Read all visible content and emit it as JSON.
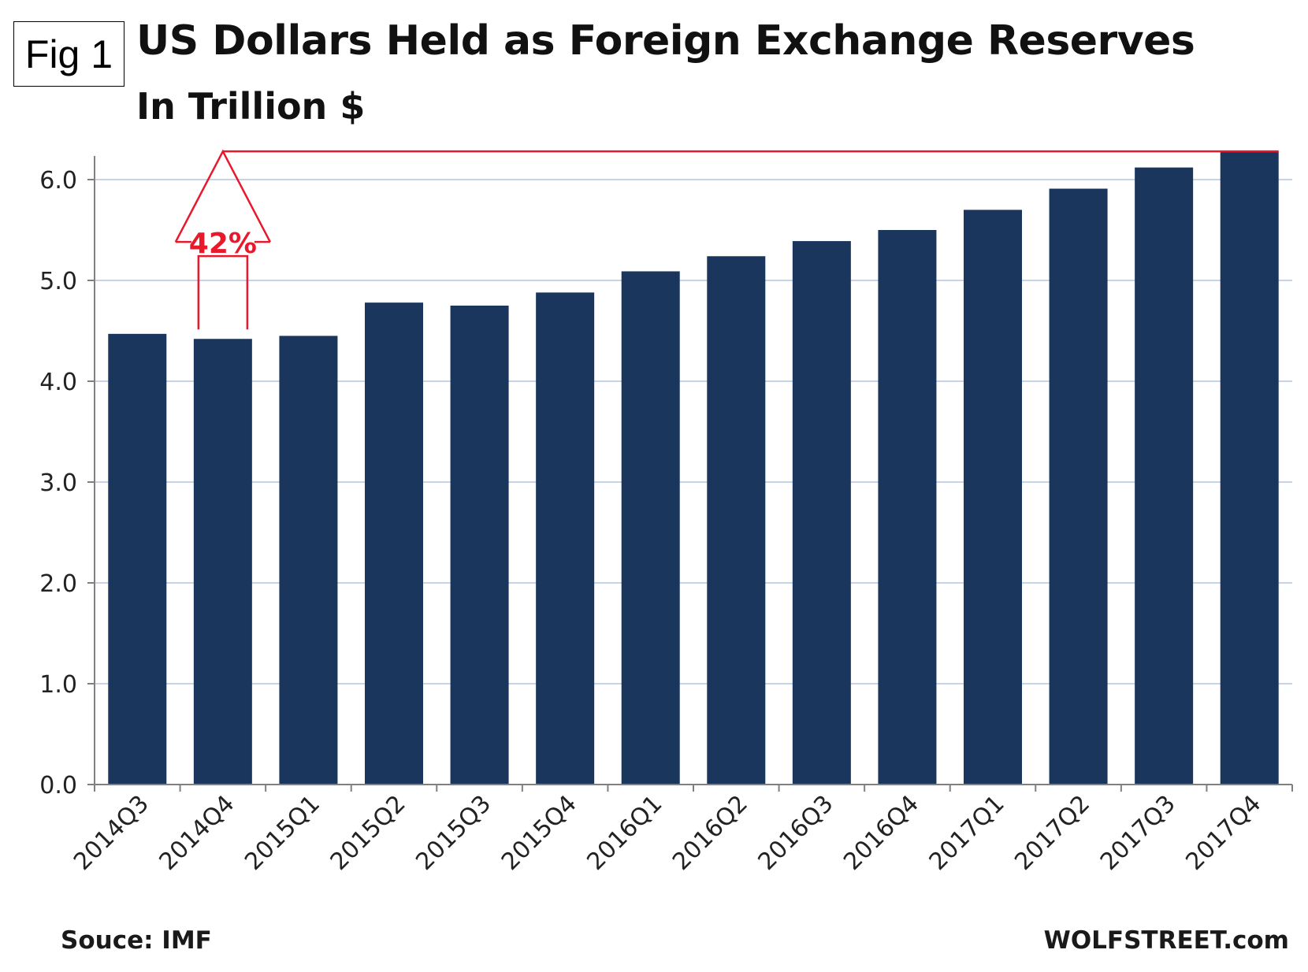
{
  "fig_label": "Fig 1",
  "colors": {
    "bar": "#1b365d",
    "grid": "#c5d4e8",
    "axis": "#808080",
    "annotation": "#e8192c"
  },
  "chart_data": {
    "type": "bar",
    "title": "US Dollars Held as Foreign Exchange Reserves",
    "subtitle": "In Trillion $",
    "xlabel": "",
    "ylabel": "",
    "ylim": [
      0,
      6.2
    ],
    "yticks": [
      0,
      1,
      2,
      3,
      4,
      5,
      6
    ],
    "ytick_labels": [
      "0.0",
      "1.0",
      "2.0",
      "3.0",
      "4.0",
      "5.0",
      "6.0"
    ],
    "grid": true,
    "categories": [
      "2014Q3",
      "2014Q4",
      "2015Q1",
      "2015Q2",
      "2015Q3",
      "2015Q4",
      "2016Q1",
      "2016Q2",
      "2016Q3",
      "2016Q4",
      "2017Q1",
      "2017Q2",
      "2017Q3",
      "2017Q4"
    ],
    "values": [
      4.47,
      4.42,
      4.45,
      4.78,
      4.75,
      4.88,
      5.09,
      5.24,
      5.39,
      5.5,
      5.7,
      5.91,
      6.12,
      6.28
    ],
    "annotation": {
      "text": "42%",
      "from_category": "2014Q4",
      "to_category": "2017Q4"
    },
    "source": "Souce: IMF",
    "brand": "WOLFSTREET.com"
  }
}
